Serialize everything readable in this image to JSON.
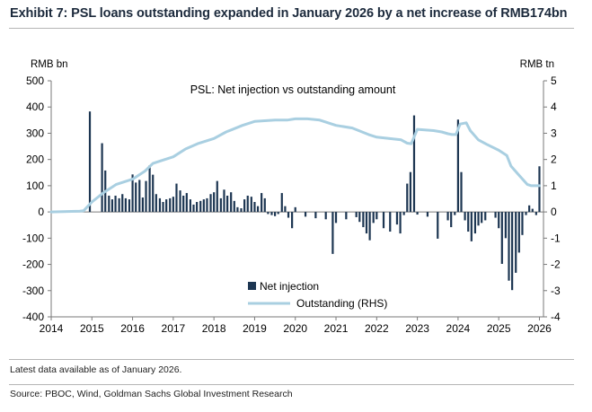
{
  "header": {
    "title": "Exhibit 7: PSL loans outstanding expanded in January 2026 by a net increase of RMB174bn"
  },
  "footer": {
    "note": "Latest data available as of January 2026.",
    "source": "Source: PBOC, Wind, Goldman Sachs Global Investment Research"
  },
  "colors": {
    "bar": "#1d3652",
    "line": "#a9cfe1",
    "title": "#1c2a3c"
  },
  "chart_data": {
    "type": "bar+line",
    "title": "PSL: Net injection vs outstanding amount",
    "left_axis": {
      "label": "RMB bn",
      "min": -400,
      "max": 500,
      "ticks": [
        -400,
        -300,
        -200,
        -100,
        0,
        100,
        200,
        300,
        400,
        500
      ]
    },
    "right_axis": {
      "label": "RMB tn",
      "min": -4,
      "max": 5,
      "ticks": [
        -4,
        -3,
        -2,
        -1,
        0,
        1,
        2,
        3,
        4,
        5
      ]
    },
    "x_axis": {
      "min": 2014,
      "max": 2026.1,
      "ticks": [
        2014,
        2015,
        2016,
        2017,
        2018,
        2019,
        2020,
        2021,
        2022,
        2023,
        2024,
        2025,
        2026
      ]
    },
    "legend": [
      "Net injection",
      "Outstanding (RHS)"
    ],
    "series": [
      {
        "name": "Net injection",
        "type": "bar",
        "axis": "left",
        "x": [
          2014.95,
          2015.25,
          2015.33,
          2015.42,
          2015.5,
          2015.58,
          2015.67,
          2015.75,
          2015.83,
          2015.92,
          2016.0,
          2016.08,
          2016.17,
          2016.25,
          2016.33,
          2016.42,
          2016.5,
          2016.58,
          2016.67,
          2016.75,
          2016.83,
          2016.92,
          2017.0,
          2017.08,
          2017.17,
          2017.25,
          2017.33,
          2017.42,
          2017.5,
          2017.58,
          2017.67,
          2017.75,
          2017.83,
          2017.92,
          2018.0,
          2018.08,
          2018.17,
          2018.25,
          2018.33,
          2018.42,
          2018.5,
          2018.58,
          2018.67,
          2018.75,
          2018.83,
          2018.92,
          2019.0,
          2019.08,
          2019.17,
          2019.25,
          2019.33,
          2019.42,
          2019.5,
          2019.58,
          2019.67,
          2019.75,
          2019.83,
          2019.92,
          2020.0,
          2020.25,
          2020.5,
          2020.75,
          2020.92,
          2021.0,
          2021.25,
          2021.5,
          2021.58,
          2021.67,
          2021.75,
          2021.83,
          2021.92,
          2022.0,
          2022.17,
          2022.33,
          2022.5,
          2022.58,
          2022.67,
          2022.75,
          2022.83,
          2022.92,
          2023.0,
          2023.25,
          2023.5,
          2023.75,
          2023.83,
          2023.92,
          2024.0,
          2024.08,
          2024.17,
          2024.25,
          2024.33,
          2024.42,
          2024.5,
          2024.58,
          2024.67,
          2024.92,
          2025.0,
          2025.08,
          2025.17,
          2025.25,
          2025.33,
          2025.42,
          2025.5,
          2025.58,
          2025.67,
          2025.75,
          2025.83,
          2025.92,
          2026.0
        ],
        "values": [
          383,
          262,
          158,
          62,
          48,
          62,
          52,
          68,
          52,
          48,
          143,
          112,
          122,
          55,
          118,
          178,
          142,
          68,
          52,
          38,
          48,
          52,
          58,
          108,
          82,
          62,
          72,
          48,
          28,
          38,
          42,
          48,
          52,
          68,
          75,
          118,
          52,
          85,
          62,
          75,
          42,
          18,
          14,
          48,
          62,
          58,
          38,
          22,
          72,
          52,
          -8,
          -12,
          -16,
          -8,
          72,
          22,
          -22,
          -62,
          18,
          -18,
          -24,
          -28,
          -160,
          -42,
          -28,
          -20,
          -38,
          -58,
          -82,
          -108,
          -42,
          -28,
          -62,
          -75,
          -48,
          -82,
          -12,
          108,
          152,
          368,
          -10,
          -18,
          -102,
          -32,
          -58,
          -12,
          352,
          152,
          -32,
          -75,
          -112,
          -82,
          -52,
          -42,
          -32,
          -22,
          -62,
          -198,
          -100,
          -262,
          -298,
          -232,
          -155,
          -88,
          -12,
          25,
          12,
          -12,
          174
        ]
      },
      {
        "name": "Outstanding (RHS)",
        "type": "line",
        "axis": "right",
        "x": [
          2014.0,
          2014.7,
          2014.8,
          2015.0,
          2015.3,
          2015.6,
          2016.0,
          2016.3,
          2016.5,
          2016.7,
          2017.0,
          2017.3,
          2017.6,
          2018.0,
          2018.3,
          2018.7,
          2019.0,
          2019.5,
          2019.8,
          2020.0,
          2020.3,
          2020.6,
          2021.0,
          2021.4,
          2021.8,
          2022.0,
          2022.3,
          2022.6,
          2022.75,
          2022.85,
          2023.0,
          2023.4,
          2023.6,
          2023.75,
          2023.85,
          2023.95,
          2024.05,
          2024.2,
          2024.3,
          2024.5,
          2024.7,
          2025.0,
          2025.2,
          2025.3,
          2025.5,
          2025.7,
          2025.8,
          2025.9,
          2026.0
        ],
        "values": [
          0,
          0.03,
          0.05,
          0.38,
          0.75,
          1.05,
          1.25,
          1.55,
          1.85,
          1.95,
          2.1,
          2.4,
          2.6,
          2.8,
          3.05,
          3.3,
          3.45,
          3.5,
          3.5,
          3.55,
          3.55,
          3.5,
          3.3,
          3.2,
          2.95,
          2.85,
          2.8,
          2.75,
          2.62,
          2.6,
          3.15,
          3.1,
          3.05,
          2.98,
          2.95,
          2.95,
          3.35,
          3.4,
          3.1,
          2.75,
          2.58,
          2.35,
          2.15,
          1.75,
          1.4,
          1.05,
          1.0,
          1.0,
          1.0
        ]
      }
    ]
  }
}
